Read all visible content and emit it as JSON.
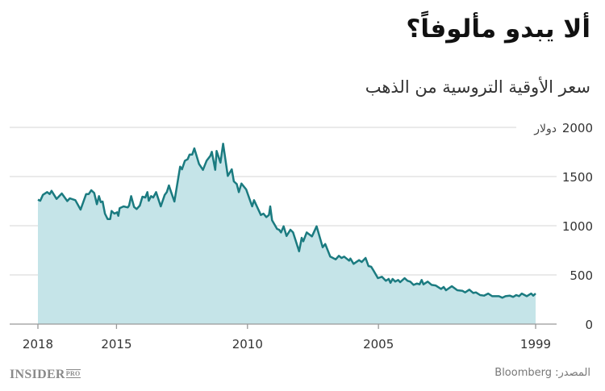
{
  "title": "ألا يبدو مألوفاً؟",
  "subtitle": "سعر الأوقية التروسية من الذهب",
  "source": "المصدر: Bloomberg",
  "logo": {
    "main": "INSIDER",
    "suffix": "PRO"
  },
  "colors": {
    "line": "#1b7b80",
    "fill": "#c5e4e8",
    "grid": "#dddddd",
    "axis": "#999999"
  },
  "chart_data": {
    "type": "area",
    "title": "سعر الأوقية التروسية من الذهب",
    "y_unit": "دولار",
    "ylim": [
      0,
      2000
    ],
    "yticks": [
      0,
      500,
      1000,
      1500,
      2000
    ],
    "ytick_labels": [
      "0",
      "500",
      "1000",
      "1500",
      "2000"
    ],
    "xlim": [
      2018,
      1999
    ],
    "x_reversed": true,
    "xticks": [
      2018,
      2015,
      2010,
      2005,
      1999
    ],
    "xtick_labels": [
      "2018",
      "2015",
      "2010",
      "2005",
      "1999"
    ],
    "grid": true,
    "series": [
      {
        "points": [
          [
            2018.0,
            1265
          ],
          [
            2017.91,
            1254
          ],
          [
            2017.81,
            1314
          ],
          [
            2017.65,
            1342
          ],
          [
            2017.55,
            1322
          ],
          [
            2017.48,
            1355
          ],
          [
            2017.29,
            1273
          ],
          [
            2017.09,
            1328
          ],
          [
            2016.88,
            1251
          ],
          [
            2016.78,
            1279
          ],
          [
            2016.57,
            1260
          ],
          [
            2016.37,
            1164
          ],
          [
            2016.16,
            1322
          ],
          [
            2016.06,
            1322
          ],
          [
            2015.96,
            1361
          ],
          [
            2015.85,
            1333
          ],
          [
            2015.75,
            1219
          ],
          [
            2015.67,
            1301
          ],
          [
            2015.6,
            1240
          ],
          [
            2015.53,
            1246
          ],
          [
            2015.44,
            1123
          ],
          [
            2015.34,
            1068
          ],
          [
            2015.24,
            1068
          ],
          [
            2015.19,
            1150
          ],
          [
            2015.08,
            1123
          ],
          [
            2014.98,
            1137
          ],
          [
            2014.93,
            1101
          ],
          [
            2014.88,
            1178
          ],
          [
            2014.73,
            1197
          ],
          [
            2014.57,
            1186
          ],
          [
            2014.52,
            1205
          ],
          [
            2014.44,
            1301
          ],
          [
            2014.33,
            1191
          ],
          [
            2014.23,
            1170
          ],
          [
            2014.11,
            1205
          ],
          [
            2014.01,
            1295
          ],
          [
            2013.9,
            1287
          ],
          [
            2013.82,
            1342
          ],
          [
            2013.77,
            1254
          ],
          [
            2013.68,
            1301
          ],
          [
            2013.6,
            1287
          ],
          [
            2013.49,
            1342
          ],
          [
            2013.31,
            1197
          ],
          [
            2013.16,
            1314
          ],
          [
            2013.08,
            1342
          ],
          [
            2013.0,
            1410
          ],
          [
            2012.93,
            1355
          ],
          [
            2012.79,
            1246
          ],
          [
            2012.57,
            1601
          ],
          [
            2012.5,
            1574
          ],
          [
            2012.39,
            1661
          ],
          [
            2012.28,
            1677
          ],
          [
            2012.21,
            1724
          ],
          [
            2012.11,
            1724
          ],
          [
            2012.03,
            1787
          ],
          [
            2011.85,
            1629
          ],
          [
            2011.7,
            1568
          ],
          [
            2011.56,
            1661
          ],
          [
            2011.42,
            1710
          ],
          [
            2011.36,
            1752
          ],
          [
            2011.23,
            1568
          ],
          [
            2011.18,
            1760
          ],
          [
            2011.03,
            1642
          ],
          [
            2010.93,
            1834
          ],
          [
            2010.75,
            1506
          ],
          [
            2010.6,
            1574
          ],
          [
            2010.52,
            1451
          ],
          [
            2010.41,
            1424
          ],
          [
            2010.33,
            1342
          ],
          [
            2010.23,
            1429
          ],
          [
            2010.05,
            1369
          ],
          [
            2009.82,
            1197
          ],
          [
            2009.75,
            1260
          ],
          [
            2009.49,
            1109
          ],
          [
            2009.39,
            1123
          ],
          [
            2009.28,
            1088
          ],
          [
            2009.18,
            1109
          ],
          [
            2009.13,
            1197
          ],
          [
            2009.06,
            1055
          ],
          [
            2008.87,
            967
          ],
          [
            2008.79,
            959
          ],
          [
            2008.72,
            932
          ],
          [
            2008.62,
            994
          ],
          [
            2008.51,
            896
          ],
          [
            2008.36,
            959
          ],
          [
            2008.26,
            932
          ],
          [
            2008.03,
            740
          ],
          [
            2007.93,
            877
          ],
          [
            2007.87,
            842
          ],
          [
            2007.74,
            932
          ],
          [
            2007.54,
            891
          ],
          [
            2007.36,
            994
          ],
          [
            2007.13,
            781
          ],
          [
            2007.03,
            814
          ],
          [
            2006.84,
            686
          ],
          [
            2006.63,
            658
          ],
          [
            2006.51,
            694
          ],
          [
            2006.41,
            672
          ],
          [
            2006.31,
            686
          ],
          [
            2006.12,
            645
          ],
          [
            2006.07,
            666
          ],
          [
            2005.95,
            612
          ],
          [
            2005.74,
            650
          ],
          [
            2005.64,
            631
          ],
          [
            2005.49,
            672
          ],
          [
            2005.38,
            590
          ],
          [
            2005.28,
            584
          ],
          [
            2005.2,
            549
          ],
          [
            2005.02,
            467
          ],
          [
            2004.87,
            481
          ],
          [
            2004.72,
            440
          ],
          [
            2004.61,
            459
          ],
          [
            2004.54,
            420
          ],
          [
            2004.46,
            459
          ],
          [
            2004.36,
            432
          ],
          [
            2004.25,
            448
          ],
          [
            2004.17,
            426
          ],
          [
            2004.0,
            467
          ],
          [
            2003.89,
            440
          ],
          [
            2003.79,
            432
          ],
          [
            2003.66,
            398
          ],
          [
            2003.53,
            412
          ],
          [
            2003.43,
            404
          ],
          [
            2003.35,
            448
          ],
          [
            2003.28,
            404
          ],
          [
            2003.12,
            432
          ],
          [
            2002.97,
            398
          ],
          [
            2002.82,
            393
          ],
          [
            2002.61,
            357
          ],
          [
            2002.51,
            377
          ],
          [
            2002.42,
            344
          ],
          [
            2002.2,
            385
          ],
          [
            2001.99,
            344
          ],
          [
            2001.79,
            338
          ],
          [
            2001.69,
            322
          ],
          [
            2001.53,
            350
          ],
          [
            2001.38,
            316
          ],
          [
            2001.28,
            322
          ],
          [
            2001.12,
            295
          ],
          [
            2000.97,
            289
          ],
          [
            2000.81,
            311
          ],
          [
            2000.66,
            284
          ],
          [
            2000.4,
            284
          ],
          [
            2000.27,
            268
          ],
          [
            2000.15,
            284
          ],
          [
            1999.99,
            289
          ],
          [
            1999.86,
            276
          ],
          [
            1999.74,
            295
          ],
          [
            1999.63,
            284
          ],
          [
            1999.53,
            311
          ],
          [
            1999.34,
            284
          ],
          [
            1999.17,
            311
          ],
          [
            1999.09,
            289
          ],
          [
            1999.0,
            311
          ]
        ]
      }
    ]
  }
}
